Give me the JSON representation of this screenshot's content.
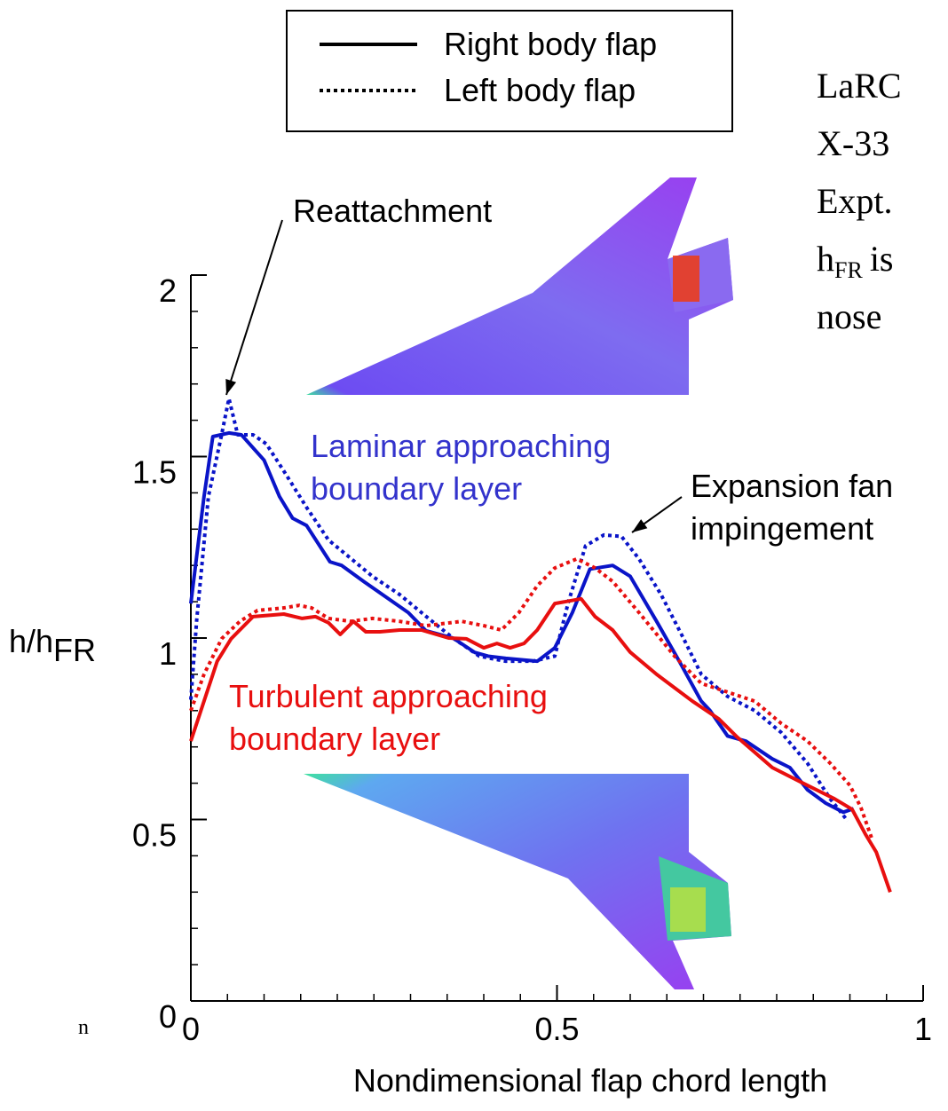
{
  "chart_data": {
    "type": "line",
    "xlabel": "Nondimensional flap chord length",
    "ylabel": "h/h",
    "ylabel_subscript": "FR",
    "xlim": [
      0,
      1
    ],
    "ylim": [
      0,
      2
    ],
    "xticks": [
      0,
      0.5,
      1
    ],
    "yticks": [
      0,
      0.5,
      1,
      1.5,
      2
    ],
    "minor_step_x": 0.05,
    "minor_step_y": 0.1,
    "legend_position": "top",
    "legend": [
      {
        "name": "Right body flap",
        "dash": "solid"
      },
      {
        "name": "Left body flap",
        "dash": "dotted"
      }
    ],
    "series": [
      {
        "color": "#0a14c8",
        "dash": "solid",
        "x": [
          0,
          0.018,
          0.03,
          0.052,
          0.069,
          0.1,
          0.121,
          0.139,
          0.158,
          0.19,
          0.206,
          0.236,
          0.297,
          0.321,
          0.358,
          0.388,
          0.406,
          0.43,
          0.473,
          0.497,
          0.521,
          0.545,
          0.576,
          0.6,
          0.636,
          0.667,
          0.697,
          0.709,
          0.733,
          0.758,
          0.794,
          0.818,
          0.842,
          0.867,
          0.891,
          0.905
        ],
        "values": [
          1.095,
          1.39,
          1.555,
          1.565,
          1.56,
          1.49,
          1.39,
          1.33,
          1.31,
          1.21,
          1.2,
          1.156,
          1.07,
          1.02,
          1.0,
          0.96,
          0.95,
          0.944,
          0.936,
          0.973,
          1.07,
          1.19,
          1.2,
          1.17,
          1.046,
          0.936,
          0.826,
          0.8,
          0.73,
          0.716,
          0.667,
          0.643,
          0.582,
          0.545,
          0.52,
          0.53
        ]
      },
      {
        "color": "#0a14c8",
        "dash": "dotted",
        "x": [
          0,
          0.008,
          0.024,
          0.042,
          0.052,
          0.064,
          0.085,
          0.103,
          0.127,
          0.158,
          0.188,
          0.218,
          0.248,
          0.285,
          0.321,
          0.358,
          0.394,
          0.43,
          0.467,
          0.497,
          0.515,
          0.539,
          0.564,
          0.588,
          0.612,
          0.642,
          0.673,
          0.697,
          0.733,
          0.77,
          0.806,
          0.842,
          0.873,
          0.897
        ],
        "values": [
          0.83,
          1.05,
          1.39,
          1.56,
          1.66,
          1.56,
          1.56,
          1.535,
          1.46,
          1.36,
          1.27,
          1.22,
          1.17,
          1.12,
          1.06,
          1.0,
          0.95,
          0.936,
          0.936,
          0.95,
          1.095,
          1.254,
          1.284,
          1.28,
          1.218,
          1.12,
          0.998,
          0.9,
          0.839,
          0.8,
          0.74,
          0.655,
          0.557,
          0.496
        ]
      },
      {
        "color": "#e80f0f",
        "dash": "solid",
        "x": [
          0,
          0.018,
          0.036,
          0.055,
          0.085,
          0.127,
          0.152,
          0.17,
          0.188,
          0.204,
          0.222,
          0.239,
          0.258,
          0.285,
          0.315,
          0.352,
          0.376,
          0.4,
          0.418,
          0.436,
          0.455,
          0.473,
          0.497,
          0.533,
          0.552,
          0.576,
          0.6,
          0.636,
          0.685,
          0.721,
          0.745,
          0.794,
          0.842,
          0.879,
          0.903,
          0.921,
          0.936,
          0.955
        ],
        "values": [
          0.716,
          0.826,
          0.936,
          0.998,
          1.059,
          1.066,
          1.054,
          1.059,
          1.042,
          1.01,
          1.046,
          1.017,
          1.017,
          1.022,
          1.022,
          1.0,
          0.998,
          0.973,
          0.985,
          0.973,
          0.985,
          1.022,
          1.095,
          1.108,
          1.059,
          1.022,
          0.961,
          0.9,
          0.826,
          0.777,
          0.729,
          0.643,
          0.594,
          0.557,
          0.528,
          0.46,
          0.41,
          0.3
        ]
      },
      {
        "color": "#e80f0f",
        "dash": "dotted",
        "x": [
          0,
          0.018,
          0.042,
          0.067,
          0.091,
          0.127,
          0.148,
          0.165,
          0.188,
          0.218,
          0.248,
          0.285,
          0.321,
          0.37,
          0.4,
          0.424,
          0.448,
          0.473,
          0.497,
          0.527,
          0.552,
          0.576,
          0.612,
          0.661,
          0.697,
          0.733,
          0.77,
          0.806,
          0.842,
          0.873,
          0.9,
          0.915,
          0.93
        ],
        "values": [
          0.8,
          0.9,
          0.998,
          1.046,
          1.076,
          1.083,
          1.09,
          1.083,
          1.054,
          1.046,
          1.054,
          1.046,
          1.034,
          1.046,
          1.034,
          1.022,
          1.07,
          1.144,
          1.193,
          1.218,
          1.193,
          1.156,
          1.07,
          0.949,
          0.875,
          0.851,
          0.826,
          0.765,
          0.716,
          0.655,
          0.594,
          0.533,
          0.447
        ]
      }
    ],
    "annotations": [
      {
        "lines": [
          "Reattachment"
        ],
        "color": "#000000"
      },
      {
        "lines": [
          "Laminar approaching",
          "boundary layer"
        ],
        "color": "#3333cc"
      },
      {
        "lines": [
          "Expansion fan",
          "impingement"
        ],
        "color": "#000000"
      },
      {
        "lines": [
          "Turbulent approaching",
          "boundary layer"
        ],
        "color": "#e80f0f"
      }
    ],
    "note": {
      "lines": [
        "LaRC",
        "X-33",
        "Expt."
      ],
      "symbol": "h",
      "subscript": "FR",
      "suffix": "is",
      "last": "nose"
    },
    "fragment": "n"
  }
}
